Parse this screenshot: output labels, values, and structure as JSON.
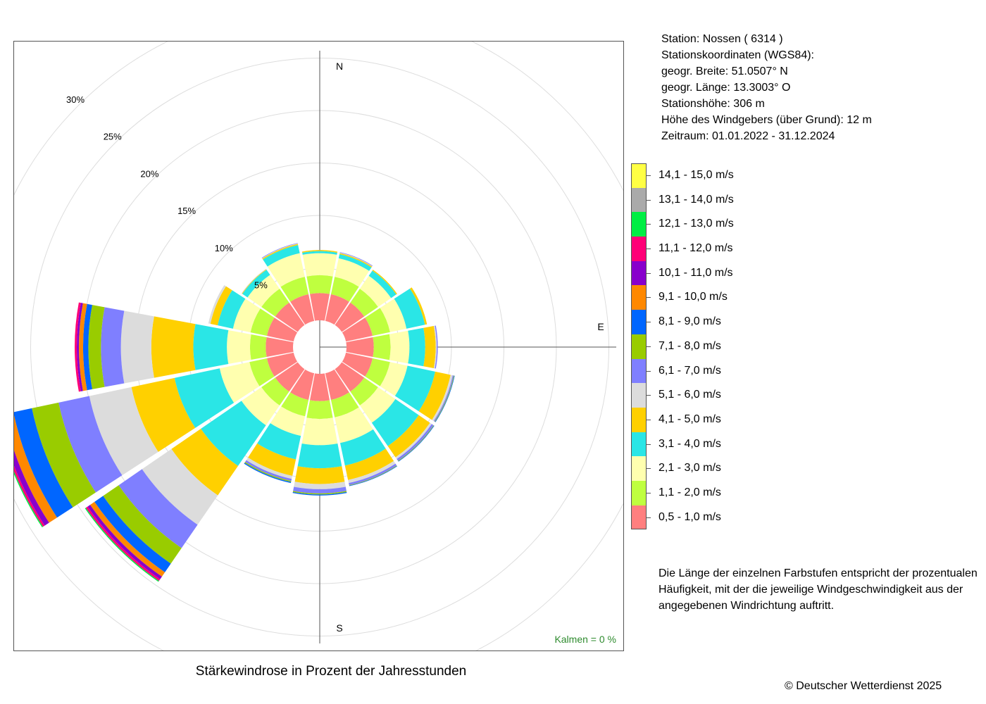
{
  "chart_data": {
    "type": "polar-stacked-bar",
    "title": "Stärkewindrose in Prozent der Jahresstunden",
    "directions": [
      "N",
      "NNO",
      "NO",
      "ONO",
      "O",
      "OSO",
      "SO",
      "SSO",
      "S",
      "SSW",
      "SW",
      "WSW",
      "W",
      "WNW",
      "NW",
      "NNW"
    ],
    "compass_labels": [
      "N",
      "E",
      "S"
    ],
    "radial_ticks": [
      5,
      10,
      15,
      20,
      25,
      30
    ],
    "radial_tick_labels": [
      "5%",
      "10%",
      "15%",
      "20%",
      "25%",
      "30%"
    ],
    "rmax": 30,
    "bins": [
      {
        "label": "0,5 - 1,0 m/s",
        "color": "#ff7f7f"
      },
      {
        "label": "1,1 - 2,0 m/s",
        "color": "#bfff3f"
      },
      {
        "label": "2,1 - 3,0 m/s",
        "color": "#ffffaf"
      },
      {
        "label": "3,1 - 4,0 m/s",
        "color": "#2ae6e6"
      },
      {
        "label": "4,1 - 5,0 m/s",
        "color": "#ffd000"
      },
      {
        "label": "5,1 - 6,0 m/s",
        "color": "#dcdcdc"
      },
      {
        "label": "6,1 - 7,0 m/s",
        "color": "#7f7fff"
      },
      {
        "label": "7,1 - 8,0 m/s",
        "color": "#99cc00"
      },
      {
        "label": "8,1 - 9,0 m/s",
        "color": "#0066ff"
      },
      {
        "label": "9,1 - 10,0 m/s",
        "color": "#ff8800"
      },
      {
        "label": "10,1 - 11,0 m/s",
        "color": "#8800cc"
      },
      {
        "label": "11,1 - 12,0 m/s",
        "color": "#ff0077"
      },
      {
        "label": "12,1 - 13,0 m/s",
        "color": "#00ee44"
      },
      {
        "label": "13,1 - 14,0 m/s",
        "color": "#aaaaaa"
      },
      {
        "label": "14,1 - 15,0 m/s",
        "color": "#ffff44"
      }
    ],
    "cumulative_percent": [
      [
        2.6,
        4.3,
        6.4,
        6.6,
        6.7,
        6.7,
        6.7,
        6.7
      ],
      [
        2.6,
        4.3,
        6.1,
        6.5,
        6.6,
        6.65,
        6.7
      ],
      [
        2.6,
        4.2,
        5.7,
        6.3,
        6.4
      ],
      [
        2.6,
        4.3,
        5.9,
        7.7,
        7.9
      ],
      [
        2.6,
        4.2,
        6.0,
        7.5,
        8.5,
        8.6,
        8.7
      ],
      [
        2.6,
        4.3,
        6.0,
        8.7,
        10.2,
        10.4,
        10.5,
        10.55,
        10.6
      ],
      [
        2.6,
        4.2,
        6.2,
        8.9,
        10.2,
        10.4,
        10.6,
        10.65,
        10.7
      ],
      [
        2.6,
        4.3,
        6.8,
        9.0,
        10.4,
        10.7,
        10.9,
        10.95,
        11.0
      ],
      [
        2.6,
        4.3,
        6.8,
        9.0,
        10.5,
        11.0,
        11.4,
        11.5,
        11.6
      ],
      [
        2.6,
        4.2,
        6.1,
        8.4,
        10.0,
        10.3,
        10.5,
        10.6,
        10.7
      ],
      [
        2.6,
        4.2,
        6.5,
        11.2,
        14.6,
        18.0,
        20.7,
        22.5,
        23.5,
        24.0,
        24.3,
        24.5,
        24.6
      ],
      [
        2.6,
        4.3,
        7.2,
        11.6,
        15.8,
        19.9,
        22.9,
        25.5,
        27.3,
        28.2,
        28.7,
        28.9,
        29.0
      ],
      [
        2.6,
        4.1,
        6.3,
        9.5,
        13.5,
        16.4,
        18.3,
        19.5,
        20.0,
        20.4,
        20.6,
        20.8
      ],
      [
        2.6,
        4.2,
        5.9,
        7.4,
        8.1,
        8.3
      ],
      [
        2.6,
        4.2,
        5.8,
        6.4,
        6.45,
        6.5
      ],
      [
        2.6,
        4.3,
        6.6,
        7.4,
        7.5,
        7.55,
        7.6
      ]
    ],
    "calm_label": "Kalmen  =  0 %"
  },
  "station": {
    "line1": "Station:  Nossen  ( 6314 )",
    "line2": "Stationskoordinaten (WGS84):",
    "line3": "geogr. Breite: 51.0507° N",
    "line4": "geogr. Länge: 13.3003° O",
    "line5": "Stationshöhe: 306 m",
    "line6": "Höhe des Windgebers (über Grund): 12 m",
    "line7": "Zeitraum: 01.01.2022 - 31.12.2024"
  },
  "note": "Die Länge der einzelnen Farbstufen entspricht der prozentualen Häufigkeit, mit der die jeweilige Windgeschwindigkeit aus der angegebenen Windrichtung auftritt.",
  "copyright": "© Deutscher Wetterdienst  2025"
}
